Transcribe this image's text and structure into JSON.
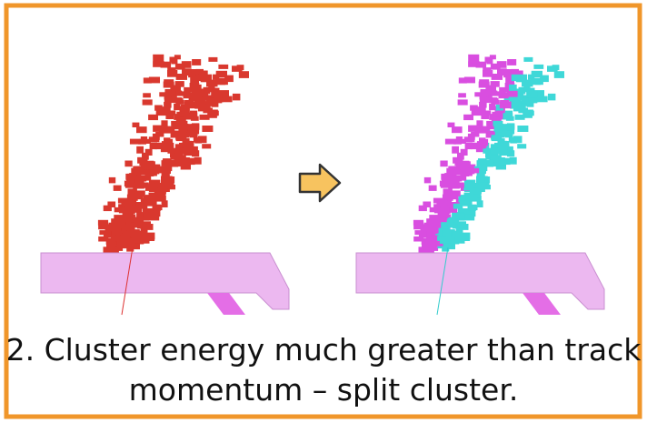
{
  "caption": {
    "lines": [
      "2. Cluster energy much greater than track",
      "momentum – split cluster."
    ]
  }
}
